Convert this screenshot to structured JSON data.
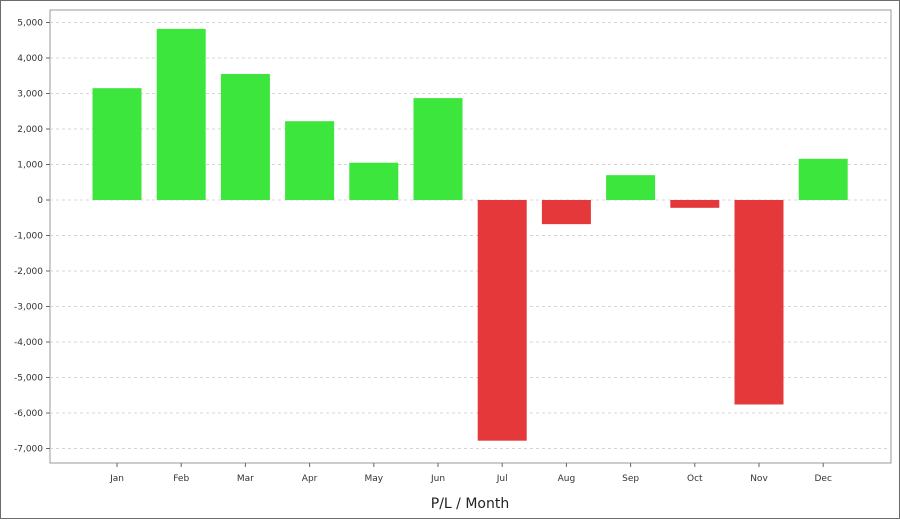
{
  "chart_data": {
    "type": "bar",
    "title": "",
    "xlabel": "P/L / Month",
    "ylabel": "",
    "categories": [
      "Jan",
      "Feb",
      "Mar",
      "Apr",
      "May",
      "Jun",
      "Jul",
      "Aug",
      "Sep",
      "Oct",
      "Nov",
      "Dec"
    ],
    "values": [
      3150,
      4820,
      3550,
      2220,
      1050,
      2870,
      -6780,
      -680,
      700,
      -220,
      -5760,
      1160
    ],
    "ylim": [
      -7250,
      5250
    ],
    "yticks": [
      5000,
      4000,
      3000,
      2000,
      1000,
      0,
      -1000,
      -2000,
      -3000,
      -4000,
      -5000,
      -6000,
      -7000
    ],
    "ytick_labels": [
      "5,000",
      "4,000",
      "3,000",
      "2,000",
      "1,000",
      "0",
      "-1,000",
      "-2,000",
      "-3,000",
      "-4,000",
      "-5,000",
      "-6,000",
      "-7,000"
    ],
    "grid": true,
    "legend": "none",
    "colors": {
      "positive": "#3de63d",
      "negative": "#e5383b",
      "grid": "#d4d4d4",
      "plot_border": "#9a9a9a"
    }
  }
}
